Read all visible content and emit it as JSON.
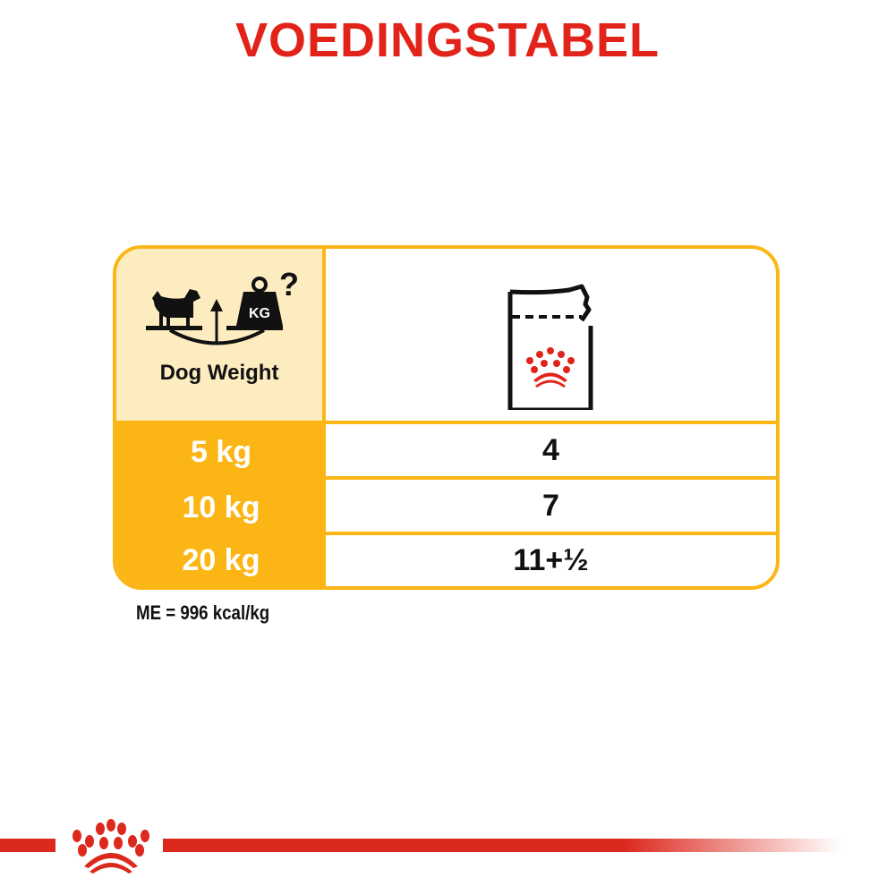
{
  "title": "VOEDINGSTABEL",
  "table": {
    "header": {
      "weight_label": "Dog Weight",
      "weight_icon": "dog-scale-kg-question-icon",
      "weight_icon_text": "KG",
      "food_icon": "royal-canin-pouch-icon"
    },
    "rows": [
      {
        "weight": "5 kg",
        "pouches": "4"
      },
      {
        "weight": "10 kg",
        "pouches": "7"
      },
      {
        "weight": "20 kg",
        "pouches": "11+½"
      }
    ]
  },
  "energy_note": "ME = 996 kcal/kg",
  "colors": {
    "brand_red": "#e2231a",
    "accent_orange": "#fbb615",
    "header_cream": "#fdecc0"
  },
  "footer": {
    "logo": "royal-canin-crown-icon"
  }
}
